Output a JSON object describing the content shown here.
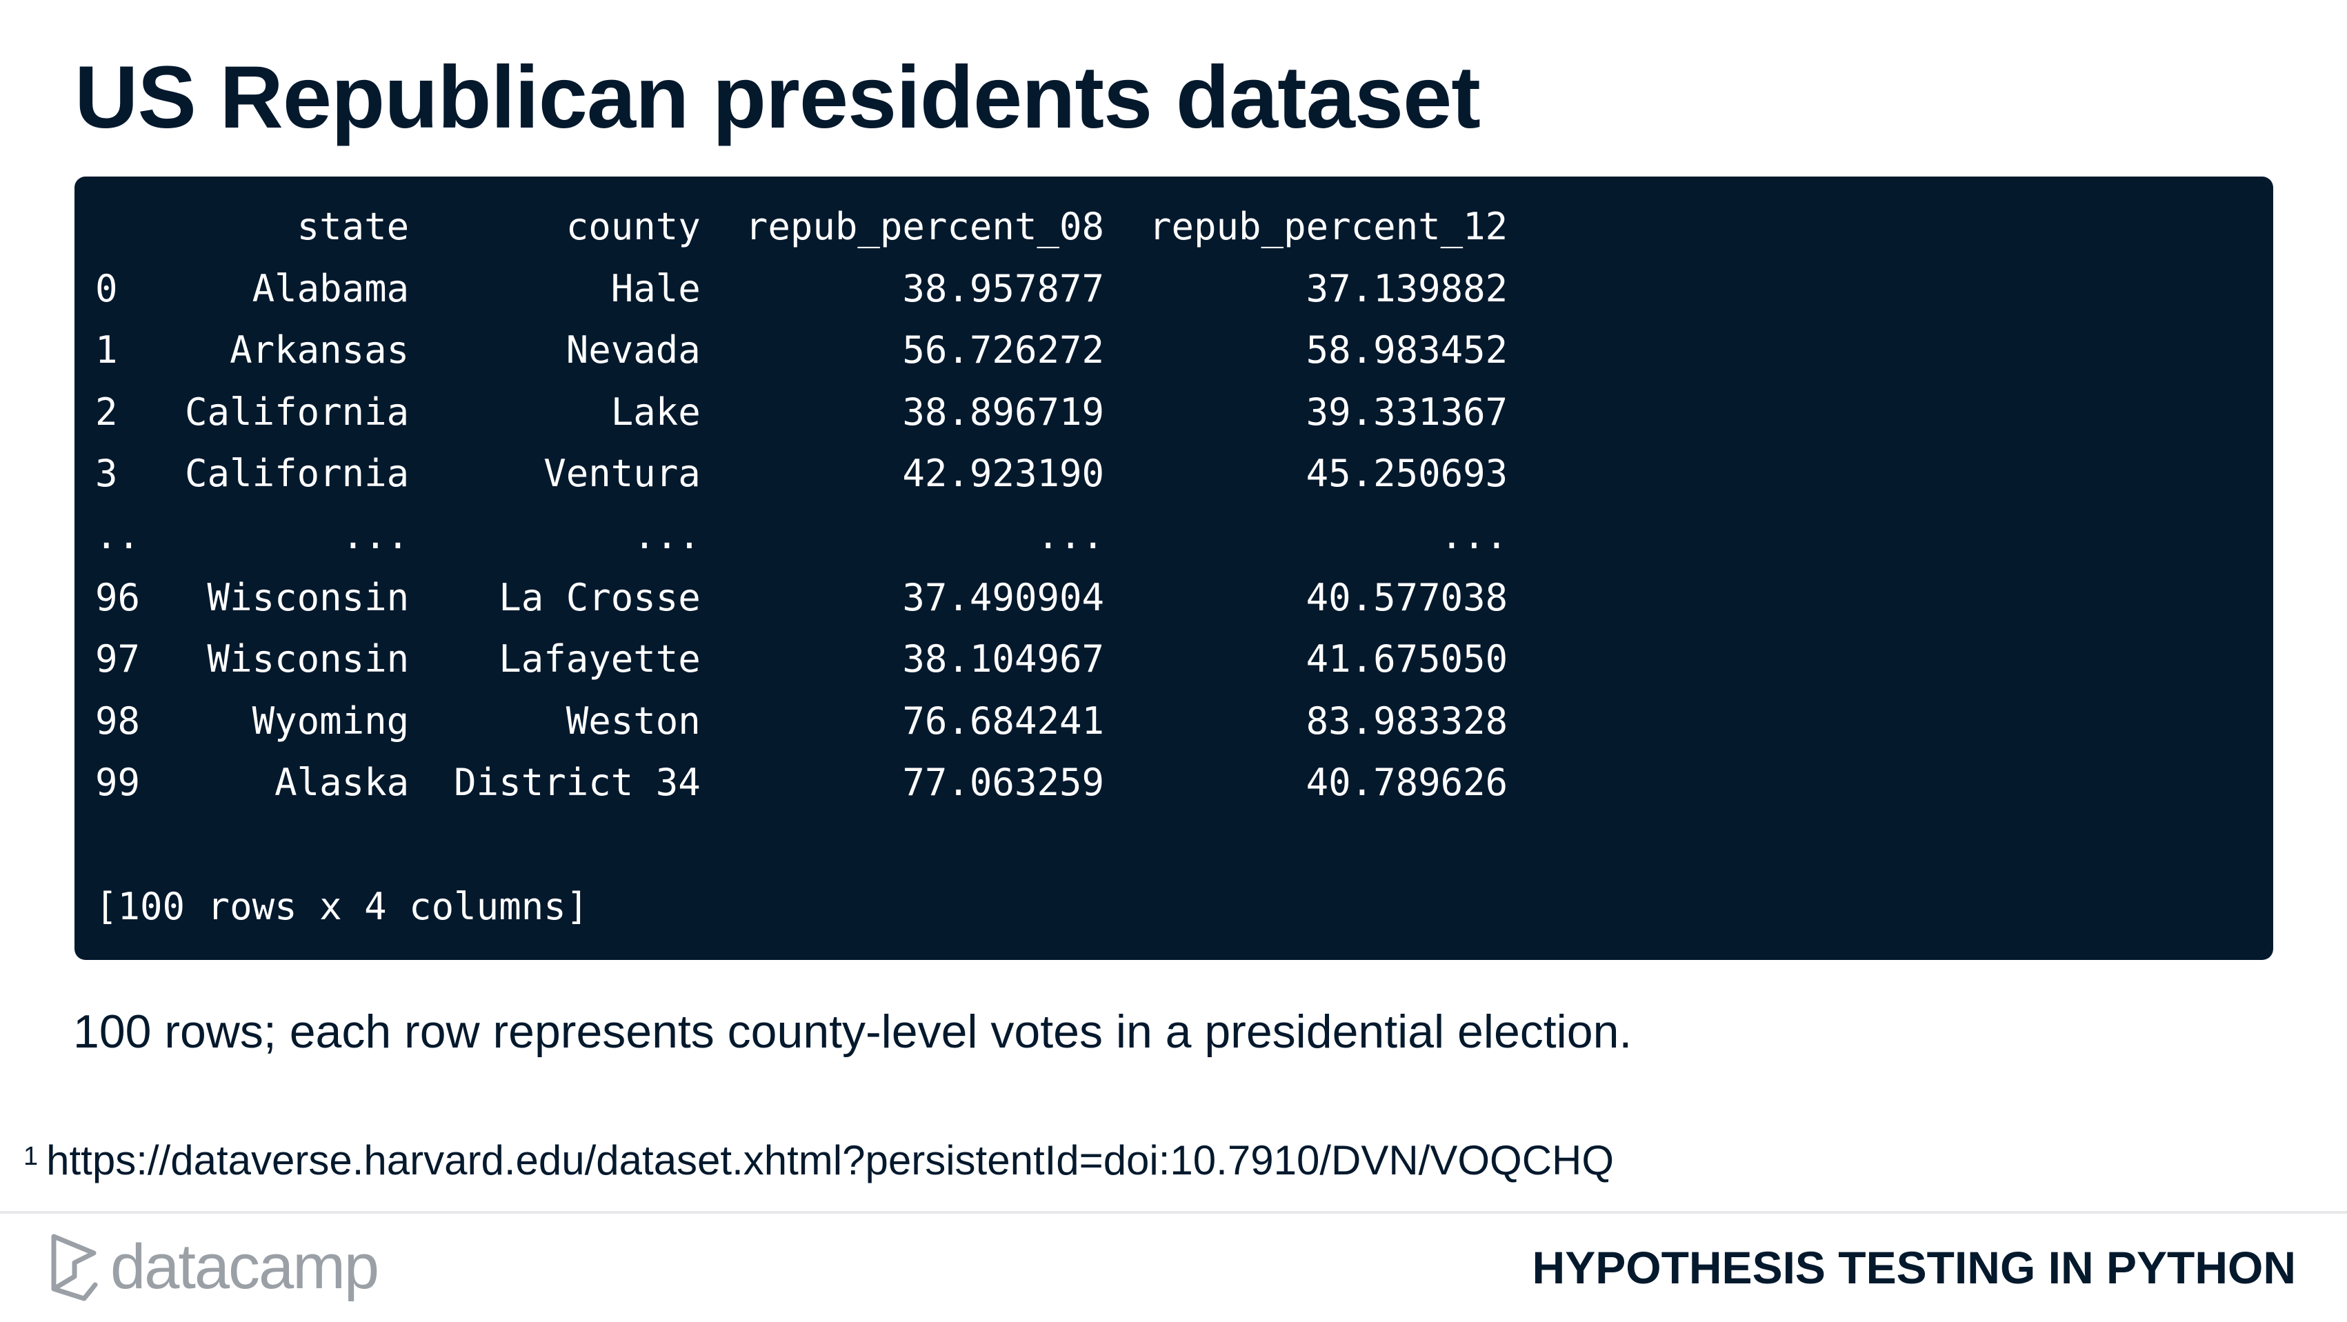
{
  "slide": {
    "title": "US Republican presidents dataset"
  },
  "code_output": {
    "lines": [
      "         state       county  repub_percent_08  repub_percent_12",
      "0      Alabama         Hale         38.957877         37.139882",
      "1     Arkansas       Nevada         56.726272         58.983452",
      "2   California         Lake         38.896719         39.331367",
      "3   California      Ventura         42.923190         45.250693",
      "..         ...          ...               ...               ...",
      "96   Wisconsin    La Crosse         37.490904         40.577038",
      "97   Wisconsin    Lafayette         38.104967         41.675050",
      "98     Wyoming       Weston         76.684241         83.983328",
      "99      Alaska  District 34         77.063259         40.789626",
      "",
      "[100 rows x 4 columns]"
    ]
  },
  "caption": "100 rows; each row represents county-level votes in a presidential election.",
  "footnote": {
    "marker": "1",
    "text": "https://dataverse.harvard.edu/dataset.xhtml?persistentId=doi:10.7910/DVN/VOQCHQ"
  },
  "footer": {
    "brand_name": "datacamp",
    "brand_icon": "datacamp-logo-icon",
    "course_title": "HYPOTHESIS TESTING IN PYTHON"
  },
  "colors": {
    "navy": "#05192d",
    "panel_background": "#05192d",
    "code_text": "#ffffff",
    "brand_gray": "#9aa0a6",
    "divider": "#e8e8ea"
  }
}
